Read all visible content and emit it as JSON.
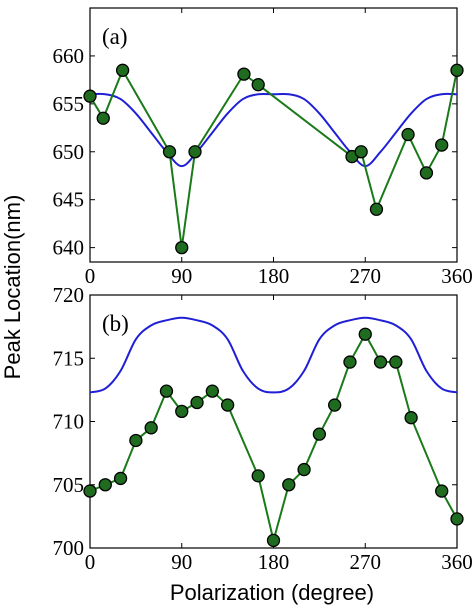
{
  "y_axis_label": "Peak Location(nm)",
  "x_axis_label": "Polarization (degree)",
  "colors": {
    "model": "#1f1fd6",
    "measured": "#1a7a1a",
    "marker_fill": "#1f6b1f",
    "marker_edge": "#000000"
  },
  "chart_data": [
    {
      "type": "line",
      "panel_label": "(a)",
      "xlabel": "",
      "ylabel": "Peak Location(nm)",
      "xlim": [
        0,
        360
      ],
      "ylim": [
        638.5,
        665
      ],
      "xticks": [
        0,
        90,
        180,
        270,
        360
      ],
      "yticks": [
        640,
        645,
        650,
        655,
        660
      ],
      "grid": false,
      "series": [
        {
          "kind": "curve",
          "x": [
            0,
            15,
            30,
            45,
            60,
            75,
            90,
            105,
            120,
            135,
            150,
            165,
            180,
            195,
            210,
            225,
            240,
            255,
            270,
            285,
            300,
            315,
            330,
            345,
            360
          ],
          "y": [
            656,
            656,
            655.5,
            654,
            652,
            650,
            648.5,
            650,
            652,
            654,
            655.5,
            656,
            656,
            656,
            655.5,
            654,
            652,
            650,
            648.5,
            650,
            652,
            654,
            655.5,
            656,
            656
          ]
        },
        {
          "kind": "markers",
          "x": [
            0,
            13,
            32,
            78,
            90,
            103,
            151,
            165,
            257,
            266,
            281,
            312,
            330,
            345,
            360
          ],
          "y": [
            655.8,
            653.5,
            658.5,
            650,
            640,
            650,
            658.1,
            657,
            649.5,
            650,
            644,
            651.8,
            647.8,
            650.7,
            658.5
          ]
        }
      ]
    },
    {
      "type": "line",
      "panel_label": "(b)",
      "xlabel": "Polarization (degree)",
      "ylabel": "",
      "xlim": [
        0,
        360
      ],
      "ylim": [
        700,
        720
      ],
      "xticks": [
        0,
        90,
        180,
        270,
        360
      ],
      "yticks": [
        700,
        705,
        710,
        715,
        720
      ],
      "grid": false,
      "series": [
        {
          "kind": "curve",
          "x": [
            0,
            15,
            30,
            45,
            60,
            75,
            90,
            105,
            120,
            135,
            150,
            165,
            180,
            195,
            210,
            225,
            240,
            255,
            270,
            285,
            300,
            315,
            330,
            345,
            360
          ],
          "y": [
            712.3,
            712.6,
            714,
            716.5,
            717.6,
            718,
            718.2,
            718,
            717.6,
            716.5,
            714,
            712.6,
            712.3,
            712.6,
            714,
            716.5,
            717.6,
            718,
            718.2,
            718,
            717.6,
            716.5,
            714,
            712.6,
            712.3
          ]
        },
        {
          "kind": "markers",
          "x": [
            0,
            15,
            30,
            45,
            60,
            75,
            90,
            105,
            120,
            135,
            165,
            180,
            195,
            210,
            225,
            240,
            255,
            270,
            285,
            300,
            315,
            345,
            360
          ],
          "y": [
            704.5,
            705,
            705.5,
            708.5,
            709.5,
            712.4,
            710.8,
            711.5,
            712.4,
            711.3,
            705.7,
            700.6,
            705,
            706.2,
            709,
            711.3,
            714.7,
            716.9,
            714.7,
            714.7,
            710.3,
            704.5,
            702.3
          ]
        }
      ]
    }
  ]
}
